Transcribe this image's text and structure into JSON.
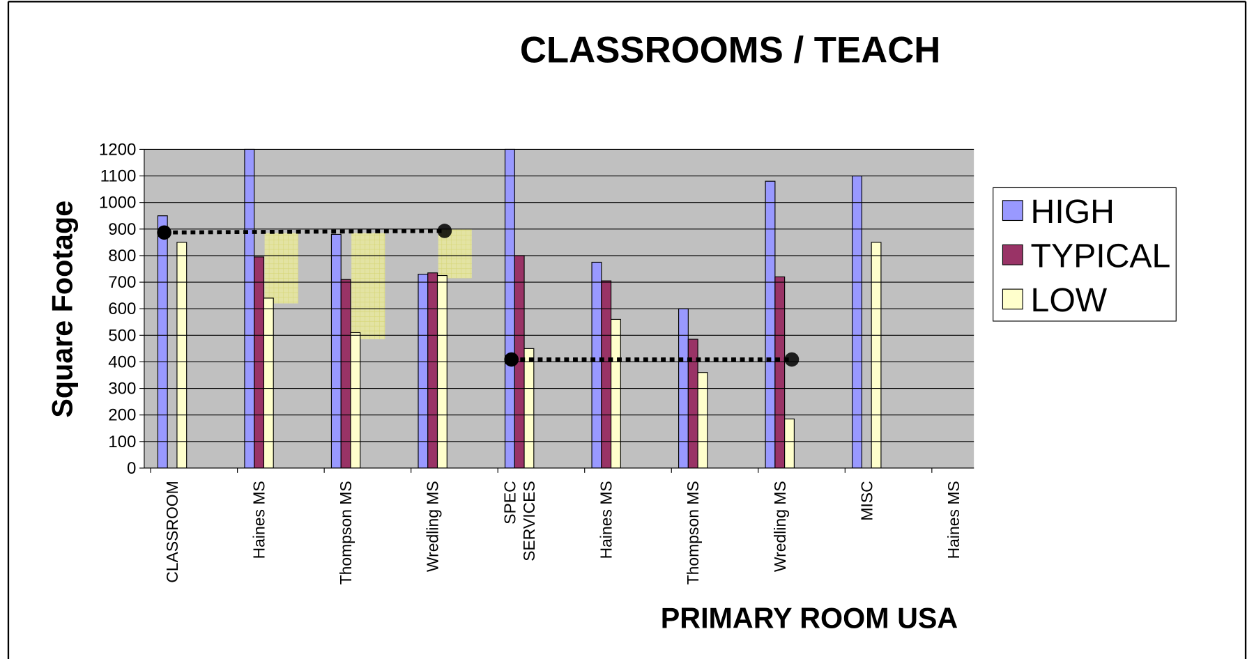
{
  "chart_data": {
    "type": "bar",
    "title": "CLASSROOMS / TEACH",
    "y_label": "Square Footage",
    "x_label": "PRIMARY ROOM USA",
    "categories": [
      "CLASSROOM",
      "Haines MS",
      "Thompson MS",
      "Wredling MS",
      "SPEC SERVICES",
      "Haines MS",
      "Thompson MS",
      "Wredling MS",
      "MISC",
      "Haines MS"
    ],
    "series": [
      {
        "name": "HIGH",
        "color": "#9999ff",
        "values": [
          950,
          1200,
          880,
          730,
          1200,
          775,
          600,
          1080,
          1100,
          null
        ]
      },
      {
        "name": "TYPICAL",
        "color": "#993366",
        "values": [
          null,
          795,
          710,
          735,
          800,
          705,
          485,
          720,
          null,
          null
        ]
      },
      {
        "name": "LOW",
        "color": "#ffffcc",
        "values": [
          850,
          640,
          510,
          725,
          450,
          560,
          360,
          185,
          850,
          null
        ]
      }
    ],
    "reference_lines": [
      {
        "from": 0,
        "to": 3,
        "values": [
          887,
          893
        ]
      },
      {
        "from": 4,
        "to": 7,
        "values": [
          409,
          409
        ]
      }
    ],
    "highlights": [
      {
        "category": 1,
        "range": [
          620,
          885
        ]
      },
      {
        "category": 2,
        "range": [
          485,
          885
        ]
      },
      {
        "category": 3,
        "range": [
          715,
          900
        ]
      }
    ],
    "ylim": [
      0,
      1200
    ],
    "yticks": [
      0,
      100,
      200,
      300,
      400,
      500,
      600,
      700,
      800,
      900,
      1000,
      1100,
      1200
    ],
    "grid": true,
    "legend": "right"
  }
}
